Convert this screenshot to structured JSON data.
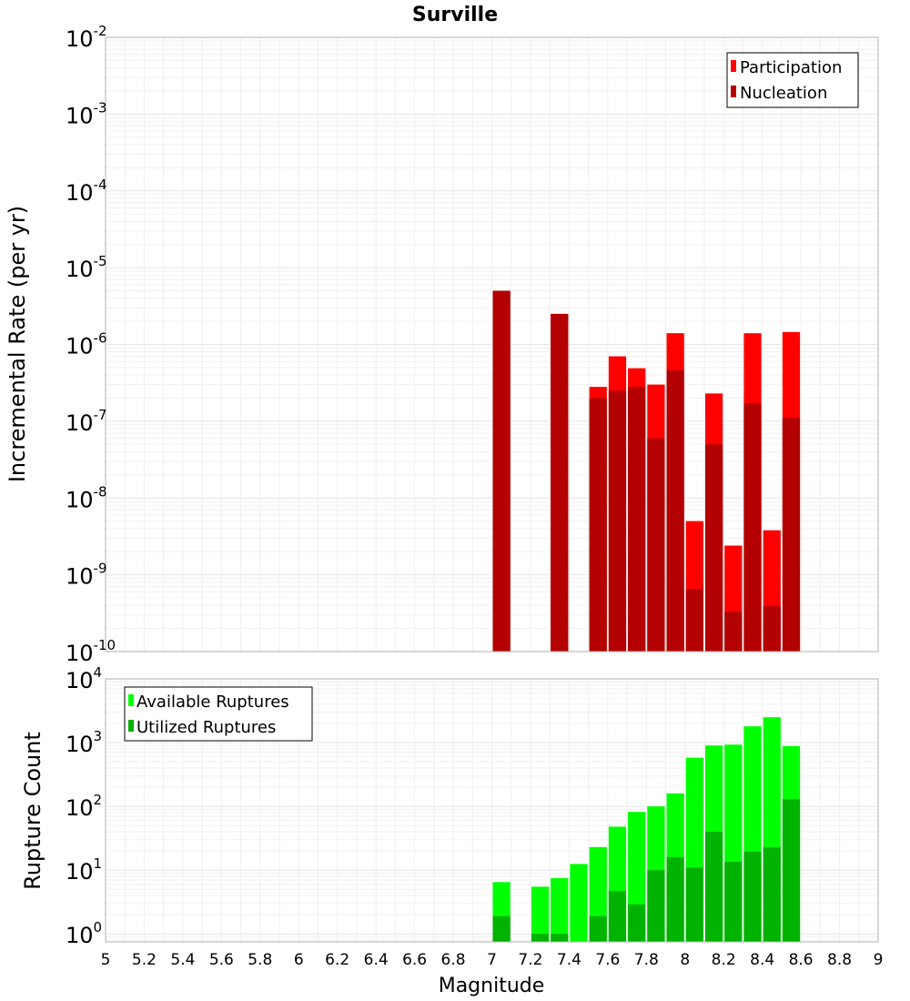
{
  "chart_data": {
    "title": "Surville",
    "x_axis": {
      "label": "Magnitude",
      "range": [
        5,
        9
      ],
      "ticks": [
        "5",
        "5.2",
        "5.4",
        "5.6",
        "5.8",
        "6",
        "6.2",
        "6.4",
        "6.6",
        "6.8",
        "7",
        "7.2",
        "7.4",
        "7.6",
        "7.8",
        "8",
        "8.2",
        "8.4",
        "8.6",
        "8.8",
        "9"
      ]
    },
    "panels": [
      {
        "type": "bar",
        "ylabel": "Incremental Rate (per yr)",
        "yscale": "log",
        "ylim": [
          1e-10,
          0.01
        ],
        "yticks": [
          {
            "base": "10",
            "exp": "-2"
          },
          {
            "base": "10",
            "exp": "-3"
          },
          {
            "base": "10",
            "exp": "-4"
          },
          {
            "base": "10",
            "exp": "-5"
          },
          {
            "base": "10",
            "exp": "-6"
          },
          {
            "base": "10",
            "exp": "-7"
          },
          {
            "base": "10",
            "exp": "-8"
          },
          {
            "base": "10",
            "exp": "-9"
          },
          {
            "base": "10",
            "exp": "-10"
          }
        ],
        "grid": true,
        "legend_position": "top-right",
        "x": [
          7.05,
          7.35,
          7.55,
          7.65,
          7.75,
          7.85,
          7.95,
          8.05,
          8.15,
          8.25,
          8.35,
          8.45,
          8.55
        ],
        "series": [
          {
            "name": "Participation",
            "color": "#ff0000",
            "values": [
              5e-06,
              2.5e-06,
              2.8e-07,
              7e-07,
              4.9e-07,
              3e-07,
              1.4e-06,
              5e-09,
              2.3e-07,
              2.4e-09,
              1.4e-06,
              3.8e-09,
              1.45e-06
            ]
          },
          {
            "name": "Nucleation",
            "color": "#b30000",
            "values": [
              5e-06,
              2.5e-06,
              2e-07,
              2.5e-07,
              2.8e-07,
              6e-08,
              4.6e-07,
              6.5e-10,
              5e-08,
              3.3e-10,
              1.7e-07,
              3.9e-10,
              1.1e-07
            ]
          }
        ]
      },
      {
        "type": "bar",
        "ylabel": "Rupture Count",
        "yscale": "log",
        "ylim": [
          0.75,
          10000
        ],
        "yticks": [
          {
            "base": "10",
            "exp": "4"
          },
          {
            "base": "10",
            "exp": "3"
          },
          {
            "base": "10",
            "exp": "2"
          },
          {
            "base": "10",
            "exp": "1"
          },
          {
            "base": "10",
            "exp": "0"
          }
        ],
        "grid": true,
        "legend_position": "top-left",
        "x": [
          7.05,
          7.25,
          7.35,
          7.45,
          7.55,
          7.65,
          7.75,
          7.85,
          7.95,
          8.05,
          8.15,
          8.25,
          8.35,
          8.45,
          8.55
        ],
        "series": [
          {
            "name": "Available Ruptures",
            "color": "#00ff00",
            "values": [
              6.5,
              5.5,
              7.5,
              12.5,
              23,
              48,
              82,
              100,
              160,
              580,
              900,
              930,
              1800,
              2500,
              880
            ]
          },
          {
            "name": "Utilized Ruptures",
            "color": "#00b300",
            "values": [
              1.9,
              1.0,
              1.0,
              null,
              1.9,
              4.7,
              2.9,
              10,
              16,
              11,
              40,
              13.5,
              19.5,
              23,
              130
            ]
          }
        ]
      }
    ]
  }
}
